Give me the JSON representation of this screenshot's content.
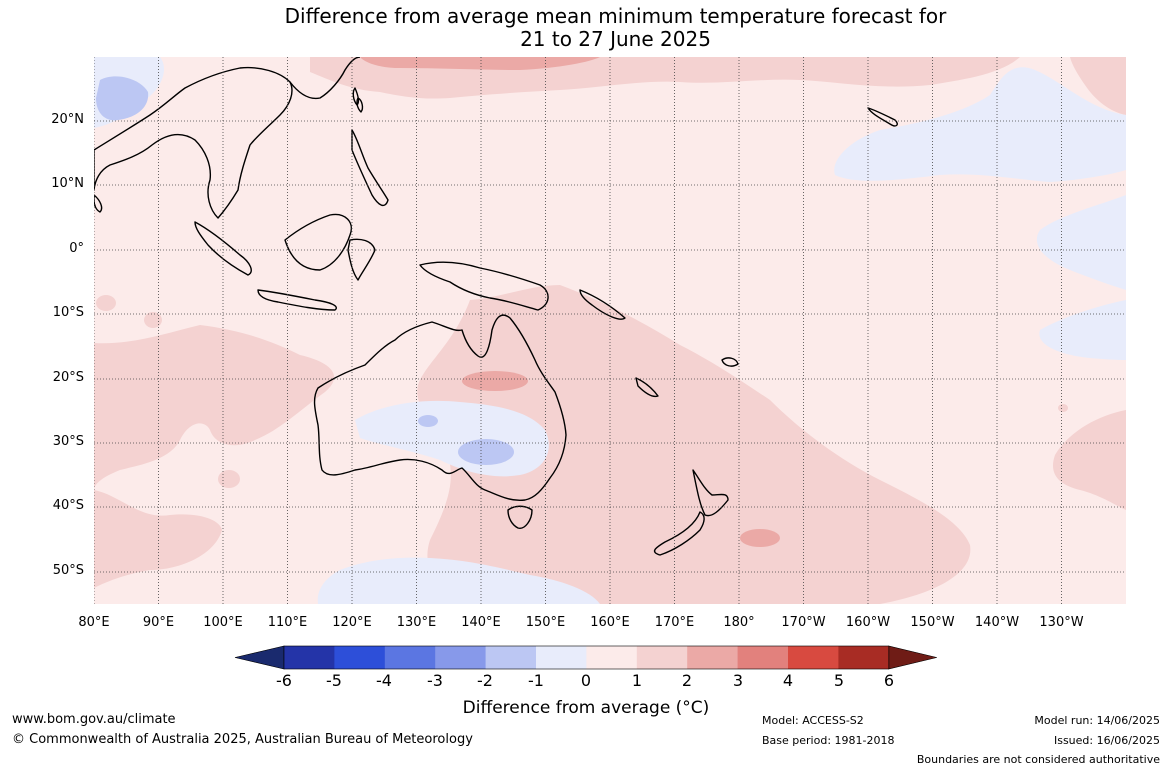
{
  "title": {
    "line1": "Difference from average mean minimum temperature forecast for",
    "line2": "21 to 27 June 2025"
  },
  "map": {
    "lat_labels": [
      "20°N",
      "10°N",
      "0°",
      "10°S",
      "20°S",
      "30°S",
      "40°S",
      "50°S"
    ],
    "lon_labels": [
      "80°E",
      "90°E",
      "100°E",
      "110°E",
      "120°E",
      "130°E",
      "140°E",
      "150°E",
      "160°E",
      "170°E",
      "180°",
      "170°W",
      "160°W",
      "150°W",
      "140°W",
      "130°W"
    ],
    "background_color": "#fcebea"
  },
  "colorbar": {
    "labels": [
      "-6",
      "-5",
      "-4",
      "-3",
      "-2",
      "-1",
      "0",
      "1",
      "2",
      "3",
      "4",
      "5",
      "6"
    ],
    "colors": [
      "#1a2a6e",
      "#2434a8",
      "#2d4fd9",
      "#5b76e2",
      "#8799ea",
      "#bcc7f3",
      "#e8ecfb",
      "#fcebea",
      "#f4d2d1",
      "#eba9a6",
      "#e2817d",
      "#d84a40",
      "#a82c24",
      "#6f1c16"
    ],
    "title": "Difference from average (°C)"
  },
  "footer": {
    "url": "www.bom.gov.au/climate",
    "copyright": "© Commonwealth of Australia 2025, Australian Bureau of Meteorology",
    "model": "Model: ACCESS-S2",
    "base_period": "Base period: 1981-2018",
    "model_run": "Model run: 14/06/2025",
    "issued": "Issued: 16/06/2025",
    "boundaries": "Boundaries are not considered authoritative"
  }
}
